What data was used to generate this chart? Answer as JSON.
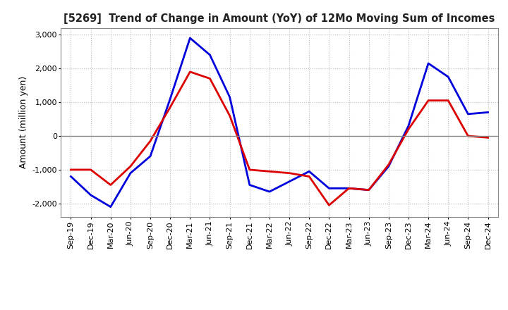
{
  "title": "[5269]  Trend of Change in Amount (YoY) of 12Mo Moving Sum of Incomes",
  "ylabel": "Amount (million yen)",
  "x_labels": [
    "Sep-19",
    "Dec-19",
    "Mar-20",
    "Jun-20",
    "Sep-20",
    "Dec-20",
    "Mar-21",
    "Jun-21",
    "Sep-21",
    "Dec-21",
    "Mar-22",
    "Jun-22",
    "Sep-22",
    "Dec-22",
    "Mar-23",
    "Jun-23",
    "Sep-23",
    "Dec-23",
    "Mar-24",
    "Jun-24",
    "Sep-24",
    "Dec-24"
  ],
  "ordinary_income": [
    -1200,
    -1750,
    -2100,
    -1100,
    -600,
    1100,
    2900,
    2400,
    1150,
    -1450,
    -1650,
    -1350,
    -1050,
    -1550,
    -1550,
    -1600,
    -900,
    300,
    2150,
    1750,
    650,
    700
  ],
  "net_income": [
    -1000,
    -1000,
    -1450,
    -900,
    -150,
    850,
    1900,
    1700,
    600,
    -1000,
    -1050,
    -1100,
    -1200,
    -2050,
    -1550,
    -1600,
    -850,
    200,
    1050,
    1050,
    0,
    -50
  ],
  "ordinary_income_color": "#0000dd",
  "net_income_color": "#dd0000",
  "ylim": [
    -2400,
    3200
  ],
  "yticks": [
    -2000,
    -1000,
    0,
    1000,
    2000,
    3000
  ],
  "grid_color": "#bbbbbb",
  "background_color": "#ffffff",
  "line_width": 2.0
}
